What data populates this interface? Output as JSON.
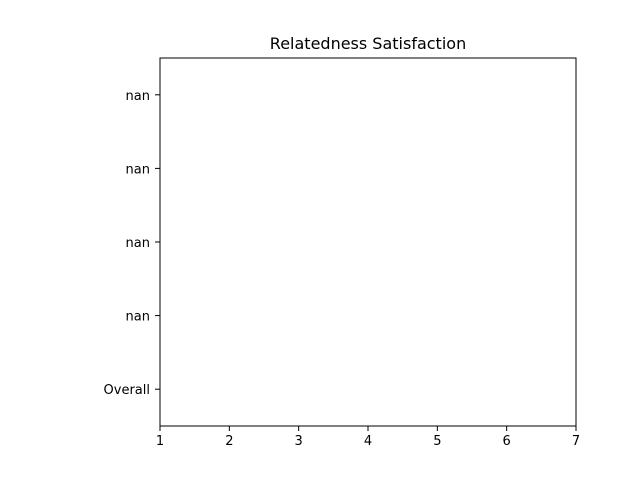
{
  "chart_data": {
    "type": "bar",
    "orientation": "horizontal",
    "title": "Relatedness Satisfaction",
    "xlabel": "",
    "ylabel": "",
    "categories": [
      "Overall",
      "nan",
      "nan",
      "nan",
      "nan"
    ],
    "values": [
      null,
      null,
      null,
      null,
      null
    ],
    "xlim": [
      1,
      7
    ],
    "x_ticks": [
      1,
      2,
      3,
      4,
      5,
      6,
      7
    ],
    "grid": false,
    "legend": "none"
  }
}
